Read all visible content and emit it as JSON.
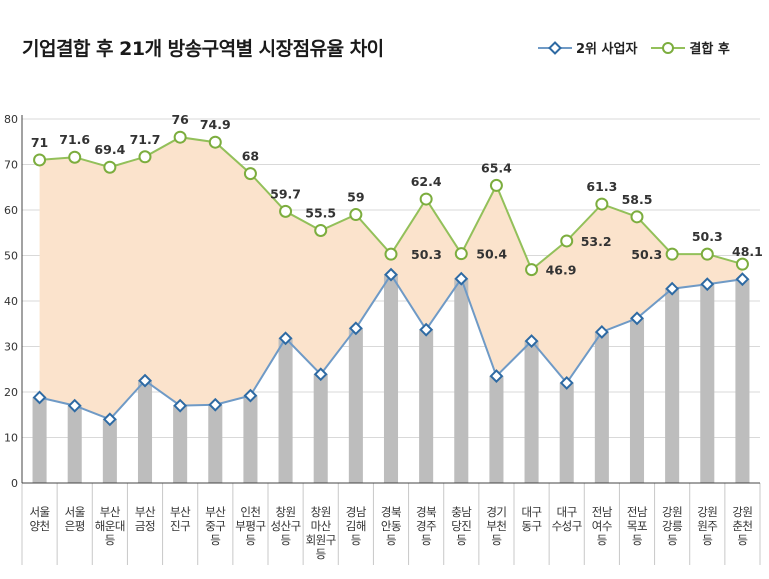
{
  "title": "기업결합 후 21개 방송구역별 시장점유율 차이",
  "legend": {
    "series1": "2위 사업자",
    "series2": "결합 후"
  },
  "colors": {
    "series1_line": "#6f9ac6",
    "series1_marker": "#2e6aa3",
    "series2_line": "#93c05a",
    "series2_marker": "#7cad3e",
    "area_fill": "#fbe3cc",
    "bar_fill": "#bdbdbd",
    "grid": "#d9d9d9",
    "axis": "#444444"
  },
  "chart_data": {
    "type": "line",
    "categories": [
      [
        "서울",
        "양천"
      ],
      [
        "서울",
        "은평"
      ],
      [
        "부산",
        "해운대",
        "등"
      ],
      [
        "부산",
        "금정"
      ],
      [
        "부산",
        "진구"
      ],
      [
        "부산",
        "중구",
        "등"
      ],
      [
        "인천",
        "부평구",
        "등"
      ],
      [
        "창원",
        "성산구",
        "등"
      ],
      [
        "창원",
        "마산",
        "회원구",
        "등"
      ],
      [
        "경남",
        "김해",
        "등"
      ],
      [
        "경북",
        "안동",
        "등"
      ],
      [
        "경북",
        "경주",
        "등"
      ],
      [
        "충남",
        "당진",
        "등"
      ],
      [
        "경기",
        "부천",
        "등"
      ],
      [
        "대구",
        "동구"
      ],
      [
        "대구",
        "수성구"
      ],
      [
        "전남",
        "여수",
        "등"
      ],
      [
        "전남",
        "목포",
        "등"
      ],
      [
        "강원",
        "강릉",
        "등"
      ],
      [
        "강원",
        "원주",
        "등"
      ],
      [
        "강원",
        "춘천",
        "등"
      ]
    ],
    "series": [
      {
        "name": "2위 사업자",
        "values": [
          18.8,
          17,
          14,
          22.5,
          17,
          17.2,
          19.2,
          31.8,
          23.9,
          34,
          45.8,
          33.7,
          44.9,
          23.5,
          31.2,
          22,
          33.2,
          36.2,
          42.7,
          43.7,
          44.8
        ]
      },
      {
        "name": "결합 후",
        "values": [
          71,
          71.6,
          69.4,
          71.7,
          76,
          74.9,
          68,
          59.7,
          55.5,
          59,
          50.3,
          62.4,
          50.4,
          65.4,
          46.9,
          53.2,
          61.3,
          58.5,
          50.3,
          50.3,
          48.1
        ]
      }
    ],
    "data_labels": [
      "71",
      "71.6",
      "69.4",
      "71.7",
      "76",
      "74.9",
      "68",
      "59.7",
      "55.5",
      "59",
      "50.3",
      "62.4",
      "50.4",
      "65.4",
      "46.9",
      "53.2",
      "61.3",
      "58.5",
      "50.3",
      "50.3",
      "48.1"
    ],
    "yticks": [
      "0",
      "10",
      "20",
      "30",
      "40",
      "50",
      "60",
      "70",
      "80"
    ],
    "ylim": [
      0,
      80
    ],
    "grid": true,
    "legend_position": "top-right"
  }
}
